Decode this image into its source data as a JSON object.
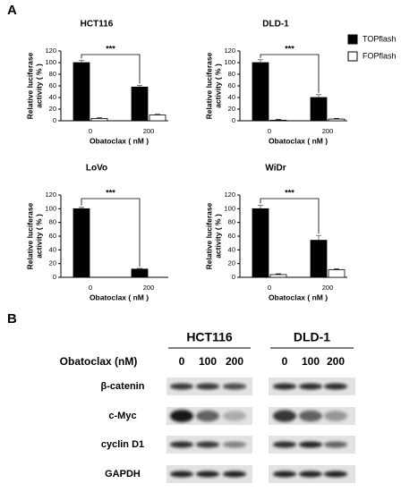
{
  "panel_a_label": "A",
  "legend": [
    {
      "name": "TOPflash",
      "color": "#000000"
    },
    {
      "name": "FOPflash",
      "color": "#ffffff"
    }
  ],
  "chart_data": [
    {
      "type": "bar",
      "title": "HCT116",
      "categories": [
        "0",
        "200"
      ],
      "series": [
        {
          "values": [
            100,
            58
          ],
          "errors": [
            4,
            3
          ]
        },
        {
          "values": [
            4,
            10
          ],
          "errors": [
            1,
            1
          ]
        }
      ],
      "ylim": [
        0,
        120
      ],
      "yticks": [
        0,
        20,
        40,
        60,
        80,
        100,
        120
      ],
      "y_label": [
        "Relative luciferase",
        "activity ( % )"
      ],
      "x_label": "Obatoclax ( nM )",
      "annotation": "***"
    },
    {
      "type": "bar",
      "title": "DLD-1",
      "categories": [
        "0",
        "200"
      ],
      "series": [
        {
          "values": [
            100,
            40
          ],
          "errors": [
            5,
            5
          ]
        },
        {
          "values": [
            1,
            3
          ],
          "errors": [
            1,
            1
          ]
        }
      ],
      "ylim": [
        0,
        120
      ],
      "yticks": [
        0,
        20,
        40,
        60,
        80,
        100,
        120
      ],
      "y_label": [
        "Relative luciferase",
        "activity ( % )"
      ],
      "x_label": "Obatoclax ( nM )",
      "annotation": "***"
    },
    {
      "type": "bar",
      "title": "LoVo",
      "categories": [
        "0",
        "200"
      ],
      "series": [
        {
          "values": [
            100,
            12
          ],
          "errors": [
            2,
            1
          ]
        },
        {
          "values": [
            0,
            0
          ],
          "errors": [
            0,
            0
          ]
        }
      ],
      "ylim": [
        0,
        120
      ],
      "yticks": [
        0,
        20,
        40,
        60,
        80,
        100,
        120
      ],
      "y_label": [
        "Relative luciferase",
        "activity ( % )"
      ],
      "x_label": "Obatoclax ( nM )",
      "annotation": "***"
    },
    {
      "type": "bar",
      "title": "WiDr",
      "categories": [
        "0",
        "200"
      ],
      "series": [
        {
          "values": [
            100,
            54
          ],
          "errors": [
            5,
            7
          ]
        },
        {
          "values": [
            4,
            11
          ],
          "errors": [
            1,
            1
          ]
        }
      ],
      "ylim": [
        0,
        120
      ],
      "yticks": [
        0,
        20,
        40,
        60,
        80,
        100,
        120
      ],
      "y_label": [
        "Relative luciferase",
        "activity ( % )"
      ],
      "x_label": "Obatoclax ( nM )",
      "annotation": "***"
    }
  ],
  "blot": {
    "label": "B",
    "dose_label": "Obatoclax (nM)",
    "groups": [
      {
        "name": "HCT116",
        "doses": [
          "0",
          "100",
          "200"
        ]
      },
      {
        "name": "DLD-1",
        "doses": [
          "0",
          "100",
          "200"
        ]
      }
    ],
    "rows": [
      "β-catenin",
      "c-Myc",
      "cyclin D1",
      "GAPDH"
    ]
  }
}
